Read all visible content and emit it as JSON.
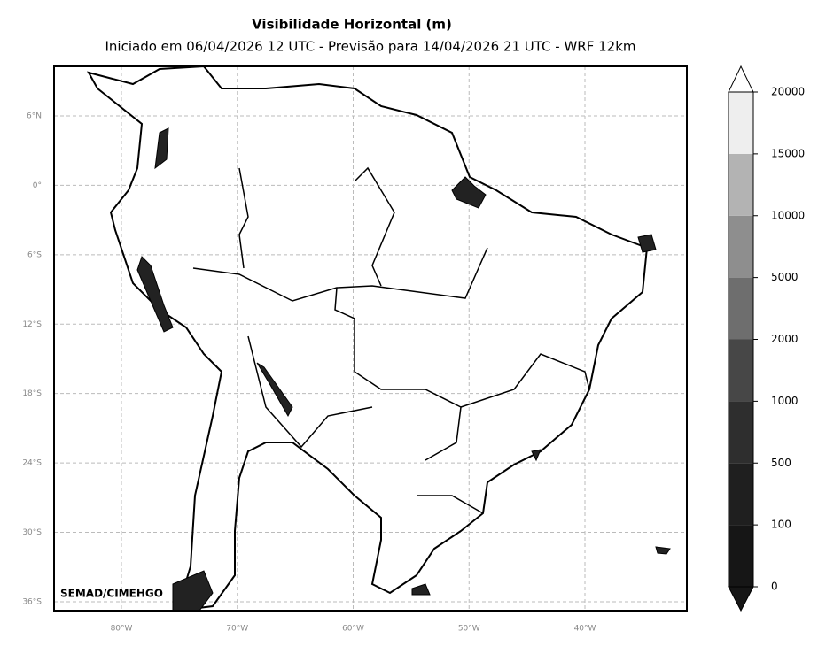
{
  "title": "Visibilidade Horizontal (m)",
  "subtitle": "Iniciado em 06/04/2026 12 UTC - Previsão para 14/04/2026 21 UTC - WRF 12km",
  "map": {
    "lat_ticks": [
      {
        "value": 6,
        "label": "6°N"
      },
      {
        "value": 0,
        "label": "0°"
      },
      {
        "value": -6,
        "label": "6°S"
      },
      {
        "value": -12,
        "label": "12°S"
      },
      {
        "value": -18,
        "label": "18°S"
      },
      {
        "value": -24,
        "label": "24°S"
      },
      {
        "value": -30,
        "label": "30°S"
      },
      {
        "value": -36,
        "label": "36°S"
      }
    ],
    "lon_ticks": [
      {
        "value": -80,
        "label": "80°W"
      },
      {
        "value": -70,
        "label": "70°W"
      },
      {
        "value": -60,
        "label": "60°W"
      },
      {
        "value": -50,
        "label": "50°W"
      },
      {
        "value": -40,
        "label": "40°W"
      }
    ],
    "credit": "SEMAD/CIMEHGO"
  },
  "colorbar": {
    "levels": [
      0,
      100,
      500,
      1000,
      2000,
      5000,
      10000,
      15000,
      20000
    ],
    "colors": [
      "#161616",
      "#1f1f1f",
      "#2e2e2e",
      "#474747",
      "#6e6e6e",
      "#8e8e8e",
      "#b3b3b3",
      "#eeeeee"
    ]
  }
}
